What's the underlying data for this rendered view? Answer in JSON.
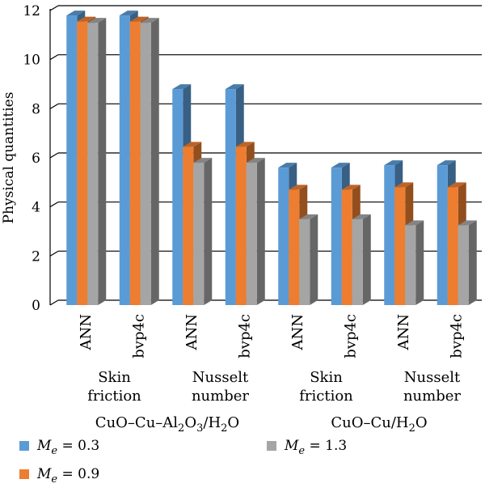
{
  "chart_data": {
    "type": "bar",
    "style": "3d-clustered",
    "ylabel": "Physical quantities",
    "ylim": [
      0,
      12
    ],
    "yticks": [
      "0",
      "2",
      "4",
      "6",
      "8",
      "10",
      "12"
    ],
    "grid": true,
    "legend_position": "bottom",
    "categories": [
      "ANN",
      "bvp4c",
      "ANN",
      "bvp4c",
      "ANN",
      "bvp4c",
      "ANN",
      "bvp4c"
    ],
    "quantity_groups": [
      {
        "line1": "Skin",
        "line2": "friction"
      },
      {
        "line1": "Nusselt",
        "line2": "number"
      },
      {
        "line1": "Skin",
        "line2": "friction"
      },
      {
        "line1": "Nusselt",
        "line2": "number"
      }
    ],
    "fluid_groups": [
      {
        "pre": "CuO–Cu–Al",
        "sub1": "2",
        "mid": "O",
        "sub2": "3",
        "post": "/H",
        "sub3": "2",
        "end": "O"
      },
      {
        "pre": "CuO–Cu/H",
        "sub1": "2",
        "mid": "O",
        "sub2": "",
        "post": "",
        "sub3": "",
        "end": ""
      }
    ],
    "series": [
      {
        "symbol": "M",
        "subscript": "e",
        "value_label": " = 0.3",
        "color": "#5b9bd5",
        "values": [
          11.8,
          11.8,
          8.8,
          8.8,
          5.6,
          5.6,
          5.7,
          5.7
        ]
      },
      {
        "symbol": "M",
        "subscript": "e",
        "value_label": " = 0.9",
        "color": "#ed7d31",
        "values": [
          11.55,
          11.55,
          6.45,
          6.45,
          4.7,
          4.7,
          4.8,
          4.8
        ]
      },
      {
        "symbol": "M",
        "subscript": "e",
        "value_label": " = 1.3",
        "color": "#a5a5a5",
        "values": [
          11.5,
          11.5,
          5.8,
          5.8,
          3.5,
          3.5,
          3.25,
          3.25
        ]
      }
    ]
  }
}
